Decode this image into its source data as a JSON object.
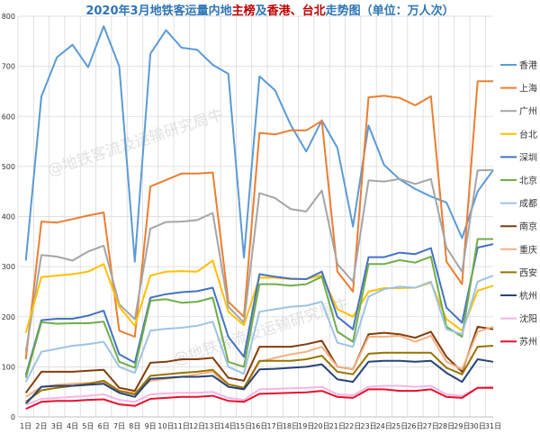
{
  "chart_data": {
    "type": "line",
    "title_parts": [
      {
        "text": "2020年3月地铁客运量内地",
        "color": "#2e75b6"
      },
      {
        "text": "主榜",
        "color": "#c00000"
      },
      {
        "text": "及",
        "color": "#2e75b6"
      },
      {
        "text": "香港、台北",
        "color": "#c00000"
      },
      {
        "text": "走势图（单位：万人次）",
        "color": "#2e75b6"
      }
    ],
    "watermark": "@地铁客流及运输研究局牛",
    "x": [
      "1日",
      "2日",
      "3日",
      "4日",
      "5日",
      "6日",
      "7日",
      "8日",
      "9日",
      "10日",
      "11日",
      "12日",
      "13日",
      "14日",
      "15日",
      "16日",
      "17日",
      "18日",
      "19日",
      "20日",
      "21日",
      "22日",
      "23日",
      "24日",
      "25日",
      "26日",
      "27日",
      "28日",
      "29日",
      "30日",
      "31日"
    ],
    "ylim": [
      0,
      800
    ],
    "yticks": [
      0,
      100,
      200,
      300,
      400,
      500,
      600,
      700,
      800
    ],
    "grid": true,
    "legend_position": "right",
    "series": [
      {
        "name": "香港",
        "color": "#5b9bd5",
        "values": [
          312,
          640,
          718,
          743,
          698,
          780,
          700,
          310,
          725,
          772,
          737,
          733,
          703,
          685,
          318,
          680,
          652,
          583,
          530,
          592,
          537,
          380,
          582,
          503,
          474,
          455,
          440,
          428,
          357,
          450,
          493
        ]
      },
      {
        "name": "上海",
        "color": "#ed7d31",
        "values": [
          115,
          390,
          388,
          395,
          402,
          408,
          172,
          160,
          460,
          473,
          486,
          486,
          488,
          230,
          200,
          567,
          564,
          572,
          572,
          591,
          290,
          250,
          638,
          641,
          637,
          622,
          640,
          310,
          265,
          670,
          670
        ]
      },
      {
        "name": "广州",
        "color": "#a5a5a5",
        "values": [
          130,
          323,
          320,
          312,
          330,
          342,
          225,
          195,
          376,
          389,
          390,
          393,
          407,
          220,
          188,
          447,
          437,
          415,
          410,
          452,
          305,
          270,
          472,
          470,
          475,
          465,
          475,
          338,
          290,
          492,
          493
        ]
      },
      {
        "name": "台北",
        "color": "#ffc000",
        "values": [
          168,
          279,
          282,
          285,
          290,
          305,
          220,
          182,
          282,
          290,
          291,
          290,
          312,
          210,
          183,
          278,
          278,
          275,
          275,
          283,
          215,
          200,
          250,
          257,
          257,
          258,
          268,
          195,
          172,
          252,
          262
        ]
      },
      {
        "name": "深圳",
        "color": "#4472c4",
        "values": [
          83,
          193,
          196,
          196,
          202,
          212,
          125,
          108,
          238,
          245,
          249,
          251,
          258,
          160,
          120,
          285,
          280,
          276,
          275,
          290,
          200,
          175,
          319,
          319,
          328,
          325,
          337,
          218,
          188,
          338,
          345
        ]
      },
      {
        "name": "北京",
        "color": "#70ad47",
        "values": [
          78,
          189,
          186,
          187,
          187,
          190,
          110,
          98,
          232,
          235,
          228,
          230,
          238,
          110,
          100,
          265,
          265,
          262,
          265,
          280,
          170,
          150,
          305,
          305,
          313,
          308,
          320,
          180,
          160,
          355,
          355
        ]
      },
      {
        "name": "成都",
        "color": "#9dc3e6",
        "values": [
          70,
          130,
          136,
          142,
          145,
          150,
          100,
          88,
          172,
          176,
          178,
          182,
          190,
          100,
          86,
          210,
          215,
          220,
          222,
          230,
          148,
          140,
          240,
          255,
          260,
          258,
          270,
          175,
          165,
          270,
          282
        ]
      },
      {
        "name": "南京",
        "color": "#843c0c",
        "values": [
          48,
          90,
          90,
          90,
          92,
          94,
          58,
          52,
          108,
          110,
          115,
          115,
          118,
          78,
          72,
          140,
          140,
          140,
          145,
          152,
          100,
          95,
          165,
          168,
          165,
          158,
          170,
          120,
          90,
          180,
          175
        ]
      },
      {
        "name": "重庆",
        "color": "#f4b183",
        "values": [
          40,
          60,
          64,
          66,
          68,
          70,
          52,
          48,
          72,
          76,
          80,
          85,
          90,
          60,
          55,
          110,
          118,
          125,
          130,
          140,
          100,
          95,
          160,
          160,
          162,
          150,
          162,
          110,
          95,
          170,
          180
        ]
      },
      {
        "name": "西安",
        "color": "#997300",
        "values": [
          30,
          53,
          58,
          62,
          66,
          72,
          52,
          45,
          82,
          85,
          88,
          90,
          94,
          65,
          58,
          112,
          112,
          112,
          115,
          122,
          90,
          85,
          126,
          128,
          128,
          128,
          128,
          98,
          85,
          140,
          142
        ]
      },
      {
        "name": "杭州",
        "color": "#264478",
        "values": [
          26,
          60,
          62,
          62,
          64,
          66,
          48,
          40,
          76,
          78,
          80,
          80,
          82,
          60,
          55,
          95,
          96,
          98,
          100,
          105,
          75,
          70,
          110,
          112,
          112,
          110,
          112,
          88,
          70,
          115,
          110
        ]
      },
      {
        "name": "沈阳",
        "color": "#f4b6e5",
        "values": [
          24,
          36,
          38,
          40,
          42,
          45,
          34,
          30,
          45,
          47,
          48,
          48,
          50,
          38,
          34,
          55,
          56,
          57,
          58,
          60,
          45,
          43,
          60,
          62,
          62,
          60,
          62,
          45,
          42,
          58,
          60
        ]
      },
      {
        "name": "苏州",
        "color": "#e8112d",
        "values": [
          16,
          30,
          32,
          32,
          34,
          35,
          25,
          22,
          36,
          38,
          40,
          40,
          42,
          32,
          30,
          46,
          47,
          48,
          49,
          52,
          40,
          38,
          55,
          55,
          52,
          52,
          55,
          40,
          38,
          58,
          58
        ]
      }
    ]
  }
}
